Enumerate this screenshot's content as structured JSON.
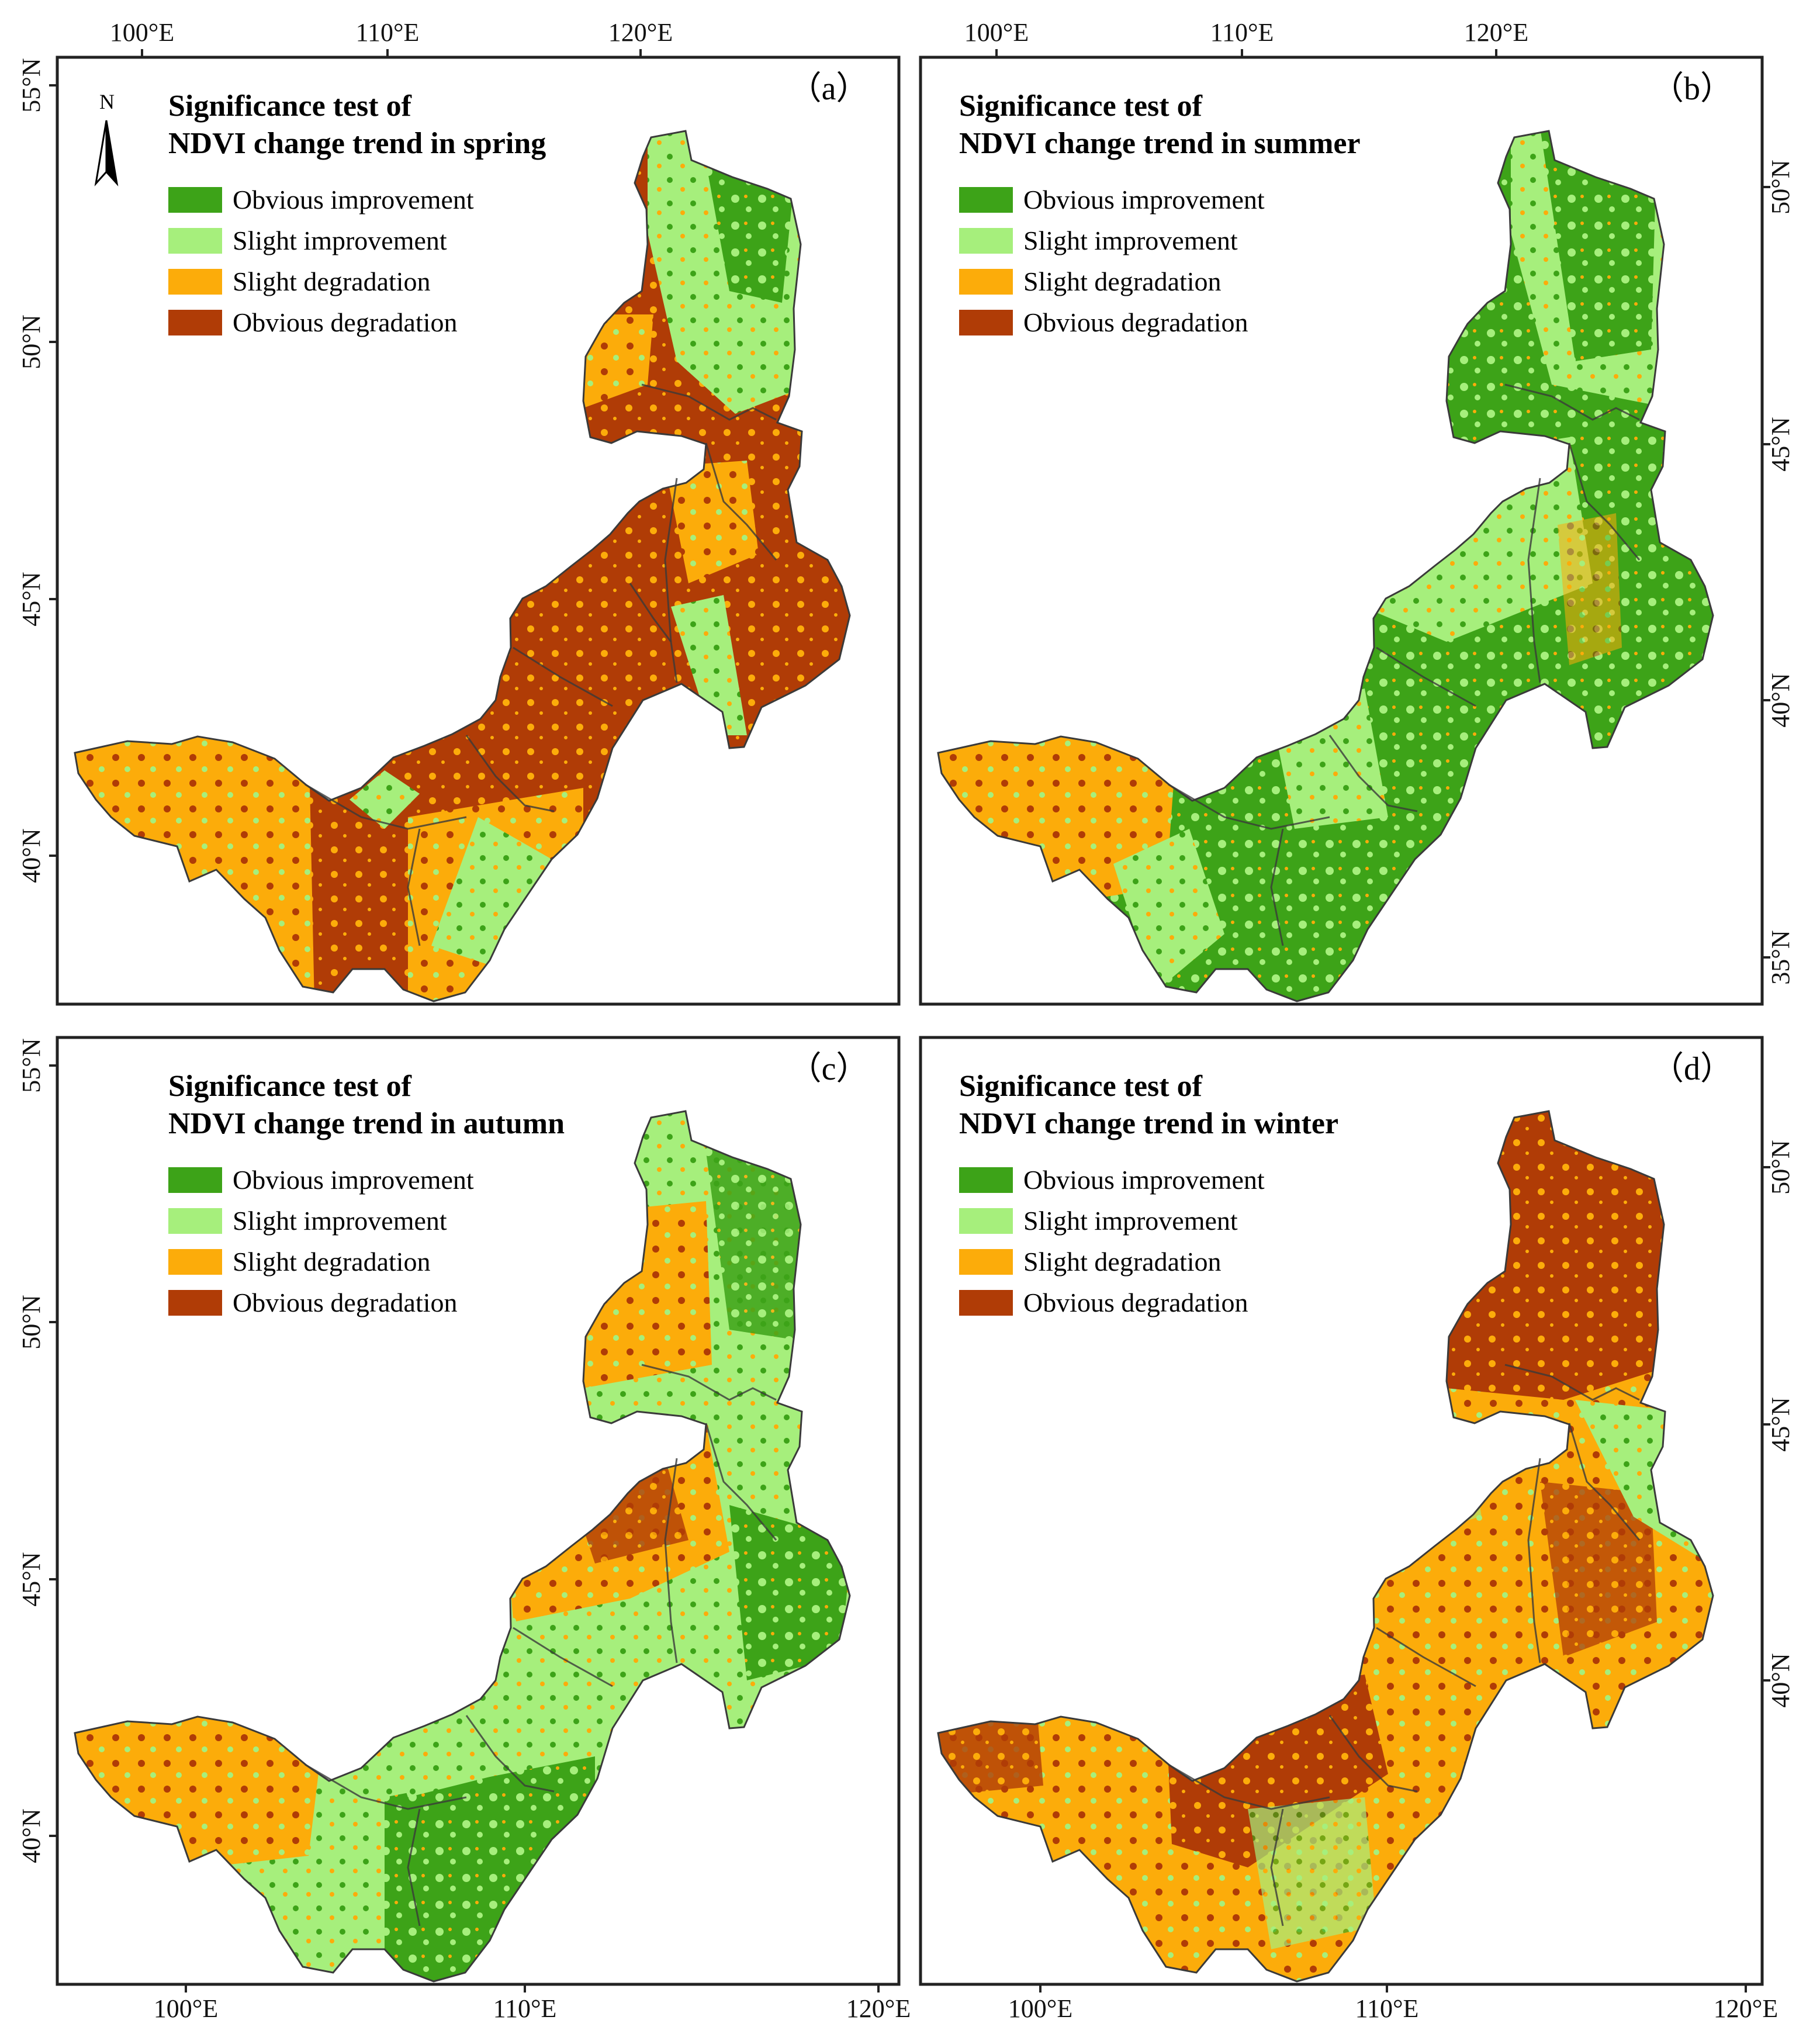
{
  "legend_colors": {
    "obvious_improvement": "#3da318",
    "slight_improvement": "#a6ef7c",
    "slight_degradation": "#fcac0a",
    "obvious_degradation": "#b03c06"
  },
  "north_arrow": {
    "label": "N",
    "icon": "north-arrow-icon"
  },
  "panels": [
    {
      "label": "（a）",
      "title_line1": "Significance test of",
      "title_line2": "NDVI change trend in spring",
      "legend": [
        "Obvious improvement",
        "Slight improvement",
        "Slight degradation",
        "Obvious degradation"
      ],
      "x_ticks": [
        "100°E",
        "110°E",
        "120°E"
      ],
      "y_ticks": [
        "55°N",
        "50°N",
        "45°N",
        "40°N"
      ],
      "class_shares": {
        "obvious_improvement": 0.05,
        "slight_improvement": 0.2,
        "slight_degradation": 0.3,
        "obvious_degradation": 0.45
      }
    },
    {
      "label": "（b）",
      "title_line1": "Significance test of",
      "title_line2": "NDVI change trend in summer",
      "legend": [
        "Obvious improvement",
        "Slight improvement",
        "Slight degradation",
        "Obvious degradation"
      ],
      "x_ticks": [
        "100°E",
        "110°E",
        "120°E"
      ],
      "y_ticks": [
        "50°N",
        "45°N",
        "40°N",
        "35°N"
      ],
      "class_shares": {
        "obvious_improvement": 0.55,
        "slight_improvement": 0.3,
        "slight_degradation": 0.12,
        "obvious_degradation": 0.03
      }
    },
    {
      "label": "（c）",
      "title_line1": "Significance test of",
      "title_line2": "NDVI change trend in autumn",
      "legend": [
        "Obvious improvement",
        "Slight improvement",
        "Slight degradation",
        "Obvious degradation"
      ],
      "x_ticks": [
        "100°E",
        "110°E",
        "120°E"
      ],
      "y_ticks": [
        "55°N",
        "50°N",
        "45°N",
        "40°N"
      ],
      "class_shares": {
        "obvious_improvement": 0.3,
        "slight_improvement": 0.3,
        "slight_degradation": 0.3,
        "obvious_degradation": 0.1
      }
    },
    {
      "label": "（d）",
      "title_line1": "Significance test of",
      "title_line2": "NDVI change trend in winter",
      "legend": [
        "Obvious improvement",
        "Slight improvement",
        "Slight degradation",
        "Obvious degradation"
      ],
      "x_ticks": [
        "100°E",
        "110°E",
        "120°E"
      ],
      "y_ticks": [
        "50°N",
        "45°N",
        "40°N"
      ],
      "class_shares": {
        "obvious_improvement": 0.03,
        "slight_improvement": 0.12,
        "slight_degradation": 0.45,
        "obvious_degradation": 0.4
      }
    }
  ]
}
